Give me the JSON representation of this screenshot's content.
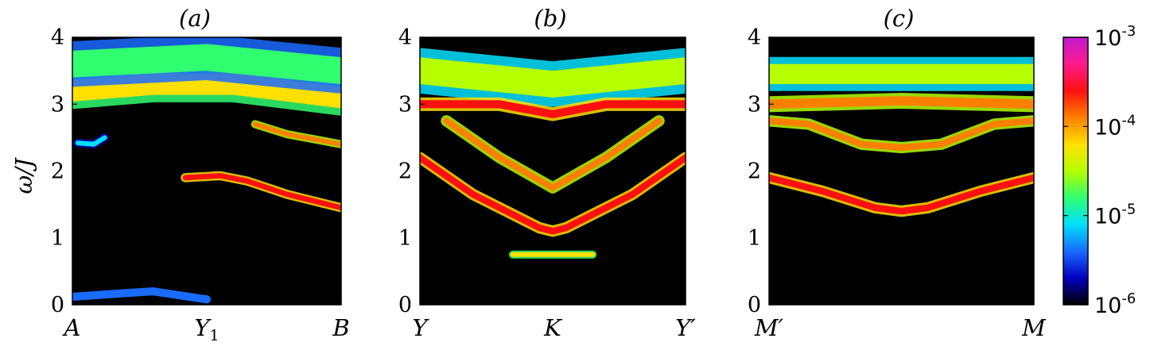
{
  "chart_data": [
    {
      "type": "heatmap",
      "title": "(a)",
      "ylabel": "ω/J",
      "ylim": [
        0,
        4
      ],
      "yticks": [
        "0",
        "1",
        "2",
        "3",
        "4"
      ],
      "xticks": [
        {
          "main": "A",
          "sub": ""
        },
        {
          "main": "Y",
          "sub": "1"
        },
        {
          "main": "B",
          "sub": ""
        }
      ],
      "colormap": "log",
      "color_range": [
        1e-06,
        0.001
      ],
      "bands": [
        {
          "x": [
            0.0,
            0.3,
            0.6,
            1.0
          ],
          "y": [
            3.2,
            3.3,
            3.3,
            3.1
          ],
          "w": 0.32,
          "level": 0.55
        },
        {
          "x": [
            0.0,
            0.5,
            1.0
          ],
          "y": [
            3.6,
            3.7,
            3.5
          ],
          "w": 0.4,
          "level": 0.4
        },
        {
          "x": [
            0.02,
            0.08,
            0.12
          ],
          "y": [
            2.42,
            2.4,
            2.5
          ],
          "w": 0.06,
          "level": 0.3
        },
        {
          "x": [
            0.68,
            0.8,
            1.0
          ],
          "y": [
            2.7,
            2.55,
            2.4
          ],
          "w": 0.07,
          "level": 0.72
        },
        {
          "x": [
            0.42,
            0.55,
            0.65,
            0.8,
            1.0
          ],
          "y": [
            1.9,
            1.93,
            1.85,
            1.65,
            1.45
          ],
          "w": 0.08,
          "level": 0.8
        },
        {
          "x": [
            0.0,
            0.3,
            0.5
          ],
          "y": [
            0.12,
            0.2,
            0.08
          ],
          "w": 0.12,
          "level": 0.15
        }
      ]
    },
    {
      "type": "heatmap",
      "title": "(b)",
      "ylim": [
        0,
        4
      ],
      "yticks": [
        "0",
        "1",
        "2",
        "3",
        "4"
      ],
      "xticks": [
        {
          "main": "Y",
          "sub": ""
        },
        {
          "main": "K",
          "sub": ""
        },
        {
          "main": "Y′",
          "sub": ""
        }
      ],
      "colormap": "log",
      "color_range": [
        1e-06,
        0.001
      ],
      "bands": [
        {
          "x": [
            0.0,
            0.25,
            0.5,
            0.75,
            1.0
          ],
          "y": [
            3.5,
            3.4,
            3.3,
            3.4,
            3.5
          ],
          "w": 0.4,
          "level": 0.45
        },
        {
          "x": [
            0.0,
            0.3,
            0.5,
            0.7,
            1.0
          ],
          "y": [
            3.0,
            3.0,
            2.85,
            3.0,
            3.0
          ],
          "w": 0.12,
          "level": 0.75
        },
        {
          "x": [
            0.1,
            0.3,
            0.5,
            0.7,
            0.9
          ],
          "y": [
            2.75,
            2.2,
            1.75,
            2.2,
            2.75
          ],
          "w": 0.1,
          "level": 0.7
        },
        {
          "x": [
            0.0,
            0.2,
            0.45,
            0.5,
            0.55,
            0.8,
            1.0
          ],
          "y": [
            2.2,
            1.65,
            1.15,
            1.1,
            1.15,
            1.65,
            2.2
          ],
          "w": 0.1,
          "level": 0.78
        },
        {
          "x": [
            0.35,
            0.5,
            0.65
          ],
          "y": [
            0.75,
            0.75,
            0.75
          ],
          "w": 0.05,
          "level": 0.55
        }
      ]
    },
    {
      "type": "heatmap",
      "title": "(c)",
      "ylim": [
        0,
        4
      ],
      "yticks": [
        "0",
        "1",
        "2",
        "3",
        "4"
      ],
      "xticks": [
        {
          "main": "M′",
          "sub": ""
        },
        {
          "main": "",
          "sub": ""
        },
        {
          "main": "M",
          "sub": ""
        }
      ],
      "colormap": "log",
      "color_range": [
        1e-06,
        0.001
      ],
      "bands": [
        {
          "x": [
            0.0,
            0.5,
            1.0
          ],
          "y": [
            3.45,
            3.45,
            3.45
          ],
          "w": 0.3,
          "level": 0.45
        },
        {
          "x": [
            0.0,
            0.5,
            1.0
          ],
          "y": [
            3.0,
            3.05,
            3.0
          ],
          "w": 0.14,
          "level": 0.7
        },
        {
          "x": [
            0.0,
            0.15,
            0.35,
            0.5,
            0.65,
            0.85,
            1.0
          ],
          "y": [
            2.75,
            2.7,
            2.4,
            2.35,
            2.4,
            2.7,
            2.75
          ],
          "w": 0.1,
          "level": 0.72
        },
        {
          "x": [
            0.0,
            0.2,
            0.4,
            0.5,
            0.6,
            0.8,
            1.0
          ],
          "y": [
            1.9,
            1.7,
            1.45,
            1.4,
            1.45,
            1.7,
            1.9
          ],
          "w": 0.1,
          "level": 0.82
        }
      ]
    }
  ],
  "colorbar": {
    "ticks": [
      {
        "base": "10",
        "exp": "-3",
        "frac": 1.0
      },
      {
        "base": "10",
        "exp": "-4",
        "frac": 0.6667
      },
      {
        "base": "10",
        "exp": "-5",
        "frac": 0.3333
      },
      {
        "base": "10",
        "exp": "-6",
        "frac": 0.0
      }
    ],
    "colors": [
      "#000000",
      "#0000c0",
      "#1a6bff",
      "#00e0ff",
      "#30ff70",
      "#b5ff00",
      "#ffe000",
      "#ff8000",
      "#ff1010",
      "#ff1a8c",
      "#c01ad0"
    ]
  }
}
